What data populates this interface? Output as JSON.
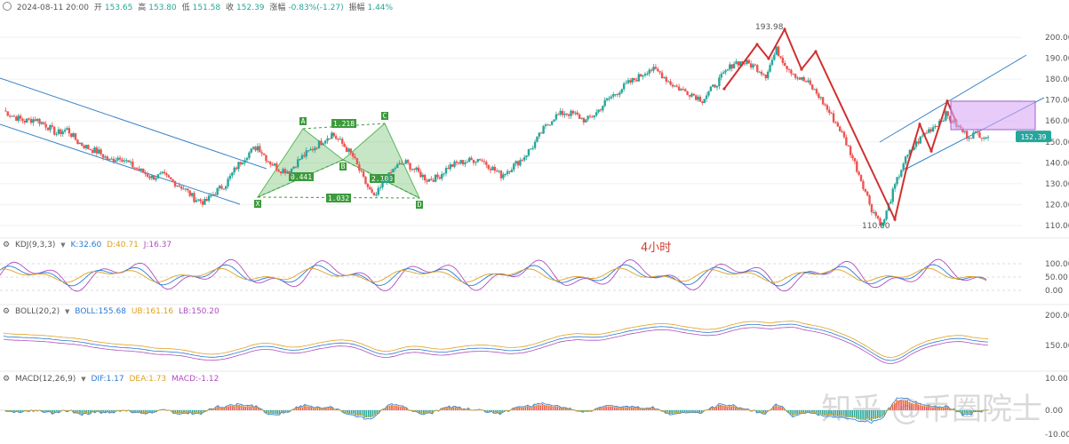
{
  "header": {
    "date": "2024-08-11 20:00",
    "open_label": "开",
    "open": "153.65",
    "high_label": "高",
    "high": "153.80",
    "low_label": "低",
    "low": "151.58",
    "close_label": "收",
    "close": "152.39",
    "change_label": "涨幅",
    "change": "-0.83%(-1.27)",
    "amp_label": "振幅",
    "amp": "1.44%"
  },
  "timeframe": "4小时",
  "watermark": "知乎 @币圈院士",
  "price_axis": {
    "ticks": [
      "200.00",
      "190.00",
      "180.00",
      "170.00",
      "160.00",
      "150.00",
      "140.00",
      "130.00",
      "120.00",
      "110.00"
    ],
    "current": "152.39",
    "ylim": [
      106,
      202
    ]
  },
  "annotations": {
    "high_label": "193.98",
    "low_label": "110.00",
    "pattern_points": [
      "X",
      "A",
      "B",
      "C",
      "D"
    ],
    "ratios": [
      "1.218",
      "0.441",
      "2.100",
      "1.032"
    ]
  },
  "kdj": {
    "title": "KDJ(9,3,3)",
    "k": "K:32.60",
    "d": "D:40.71",
    "j": "J:16.37",
    "ticks": [
      "100.00",
      "50.00",
      "0.00"
    ]
  },
  "boll": {
    "title": "BOLL(20,2)",
    "boll": "BOLL:155.68",
    "ub": "UB:161.16",
    "lb": "LB:150.20",
    "ticks": [
      "200.00",
      "150.00"
    ]
  },
  "macd": {
    "title": "MACD(12,26,9)",
    "dif": "DIF:1.17",
    "dea": "DEA:1.73",
    "macd": "MACD:-1.12",
    "ticks": [
      "10.00",
      "0.00",
      "-10.00"
    ]
  },
  "colors": {
    "up": "#26a69a",
    "down": "#ef5350",
    "channel": "#3a86c8",
    "pattern": "#5cb85c",
    "wave": "#d03030",
    "box": "#d9a8f5"
  },
  "chart_data": {
    "type": "line",
    "title": "",
    "xlabel": "",
    "ylabel": "",
    "ylim": [
      106,
      202
    ],
    "series": [
      {
        "values": [
          165,
          162,
          160,
          161,
          158,
          154,
          156,
          150,
          147,
          145,
          141,
          143,
          139,
          136,
          133,
          134,
          131,
          128,
          123,
          121,
          126,
          130,
          138,
          144,
          148,
          141,
          137,
          136,
          142,
          146,
          150,
          154,
          149,
          143,
          132,
          123,
          131,
          138,
          140,
          136,
          132,
          133,
          138,
          140,
          141,
          142,
          138,
          134,
          138,
          142,
          148,
          156,
          162,
          164,
          163,
          160,
          164,
          170,
          174,
          178,
          181,
          185,
          183,
          178,
          175,
          173,
          170,
          176,
          182,
          188,
          188,
          186,
          182,
          193.98,
          186,
          181,
          178,
          172,
          164,
          156,
          145,
          132,
          118,
          110,
          126,
          140,
          148,
          154,
          158,
          163,
          158,
          153,
          154,
          152.39
        ]
      }
    ]
  }
}
